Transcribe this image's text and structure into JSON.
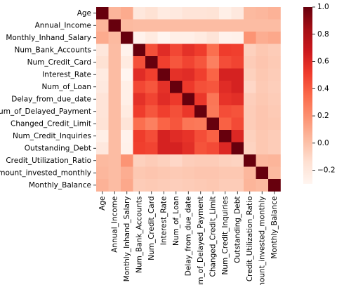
{
  "chart_data": {
    "type": "heatmap",
    "title": "",
    "xlabel": "",
    "ylabel": "",
    "labels": [
      "Age",
      "Annual_Income",
      "Monthly_Inhand_Salary",
      "Num_Bank_Accounts",
      "Num_Credit_Card",
      "Interest_Rate",
      "Num_of_Loan",
      "Delay_from_due_date",
      "Num_of_Delayed_Payment",
      "Changed_Credit_Limit",
      "Num_Credit_Inquiries",
      "Outstanding_Debt",
      "Credit_Utilization_Ratio",
      "Amount_invested_monthly",
      "Monthly_Balance"
    ],
    "values": [
      [
        1.0,
        0.05,
        0.09,
        -0.19,
        -0.15,
        -0.22,
        -0.21,
        -0.17,
        -0.17,
        -0.16,
        -0.25,
        -0.2,
        0.03,
        0.04,
        0.06
      ],
      [
        0.05,
        1.0,
        0.03,
        0.02,
        0.02,
        0.02,
        0.02,
        0.02,
        0.02,
        0.02,
        0.02,
        0.02,
        0.02,
        0.02,
        0.02
      ],
      [
        0.09,
        0.03,
        1.0,
        -0.28,
        -0.22,
        -0.3,
        -0.25,
        -0.25,
        -0.22,
        -0.17,
        -0.28,
        -0.27,
        0.18,
        0.08,
        0.1
      ],
      [
        -0.19,
        0.02,
        -0.28,
        1.0,
        0.44,
        0.58,
        0.47,
        0.56,
        0.51,
        0.33,
        0.51,
        0.5,
        -0.07,
        -0.03,
        -0.05
      ],
      [
        -0.15,
        0.02,
        -0.22,
        0.44,
        1.0,
        0.5,
        0.42,
        0.48,
        0.42,
        0.26,
        0.45,
        0.48,
        -0.05,
        -0.02,
        -0.04
      ],
      [
        -0.22,
        0.02,
        -0.3,
        0.58,
        0.5,
        1.0,
        0.56,
        0.58,
        0.5,
        0.37,
        0.63,
        0.63,
        -0.07,
        -0.03,
        -0.05
      ],
      [
        -0.21,
        0.02,
        -0.25,
        0.47,
        0.42,
        0.56,
        1.0,
        0.52,
        0.44,
        0.42,
        0.58,
        0.63,
        -0.1,
        -0.04,
        -0.06
      ],
      [
        -0.17,
        0.02,
        -0.25,
        0.56,
        0.48,
        0.58,
        0.52,
        1.0,
        0.53,
        0.3,
        0.55,
        0.57,
        -0.06,
        -0.03,
        -0.05
      ],
      [
        -0.17,
        0.02,
        -0.22,
        0.51,
        0.42,
        0.5,
        0.44,
        0.53,
        1.0,
        0.29,
        0.45,
        0.43,
        -0.05,
        -0.02,
        -0.04
      ],
      [
        -0.16,
        0.02,
        -0.17,
        0.33,
        0.26,
        0.37,
        0.42,
        0.3,
        0.29,
        1.0,
        0.38,
        0.46,
        -0.05,
        -0.02,
        -0.03
      ],
      [
        -0.25,
        0.02,
        -0.28,
        0.51,
        0.45,
        0.63,
        0.58,
        0.55,
        0.45,
        0.38,
        1.0,
        0.6,
        -0.07,
        -0.03,
        -0.05
      ],
      [
        -0.2,
        0.02,
        -0.27,
        0.5,
        0.48,
        0.63,
        0.63,
        0.57,
        0.43,
        0.46,
        0.6,
        1.0,
        -0.08,
        -0.03,
        -0.05
      ],
      [
        0.03,
        0.02,
        0.18,
        -0.07,
        -0.05,
        -0.07,
        -0.1,
        -0.06,
        -0.05,
        -0.05,
        -0.07,
        -0.08,
        1.0,
        0.04,
        0.05
      ],
      [
        0.04,
        0.02,
        0.08,
        -0.03,
        -0.02,
        -0.03,
        -0.04,
        -0.03,
        -0.02,
        -0.02,
        -0.03,
        -0.03,
        0.04,
        1.0,
        0.03
      ],
      [
        0.06,
        0.02,
        0.1,
        -0.05,
        -0.04,
        -0.05,
        -0.06,
        -0.05,
        -0.04,
        -0.03,
        -0.05,
        -0.05,
        0.05,
        0.03,
        1.0
      ]
    ],
    "colorbar": {
      "colormap": "Reds",
      "vmin": -0.3,
      "vmax": 1.0,
      "ticks": [
        1.0,
        0.8,
        0.6,
        0.4,
        0.2,
        0.0,
        -0.2
      ],
      "tick_labels": [
        "1.0",
        "0.8",
        "0.6",
        "0.4",
        "0.2",
        "0.0",
        "−0.2"
      ]
    },
    "grid": false,
    "legend": "colorbar-right"
  }
}
